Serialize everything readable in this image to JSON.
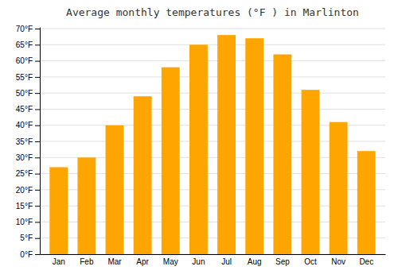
{
  "chart_data": {
    "type": "bar",
    "title": "Average monthly temperatures (°F ) in Marlinton",
    "categories": [
      "Jan",
      "Feb",
      "Mar",
      "Apr",
      "May",
      "Jun",
      "Jul",
      "Aug",
      "Sep",
      "Oct",
      "Nov",
      "Dec"
    ],
    "values": [
      27,
      30,
      40,
      49,
      58,
      65,
      68,
      67,
      62,
      51,
      41,
      32
    ],
    "color": "#FFA500",
    "ylim": [
      0,
      70.5
    ],
    "yticks": [
      {
        "value": 0,
        "label": "0°F"
      },
      {
        "value": 5,
        "label": "5°F"
      },
      {
        "value": 10,
        "label": "10°F"
      },
      {
        "value": 15,
        "label": "15°F"
      },
      {
        "value": 20,
        "label": "20°F"
      },
      {
        "value": 25,
        "label": "25°F"
      },
      {
        "value": 30,
        "label": "30°F"
      },
      {
        "value": 35,
        "label": "35°F"
      },
      {
        "value": 40,
        "label": "40°F"
      },
      {
        "value": 45,
        "label": "45°F"
      },
      {
        "value": 50,
        "label": "50°F"
      },
      {
        "value": 55,
        "label": "55°F"
      },
      {
        "value": 60,
        "label": "60°F"
      },
      {
        "value": 65,
        "label": "65°F"
      },
      {
        "value": 70,
        "label": "70°F"
      }
    ],
    "grid": true
  }
}
